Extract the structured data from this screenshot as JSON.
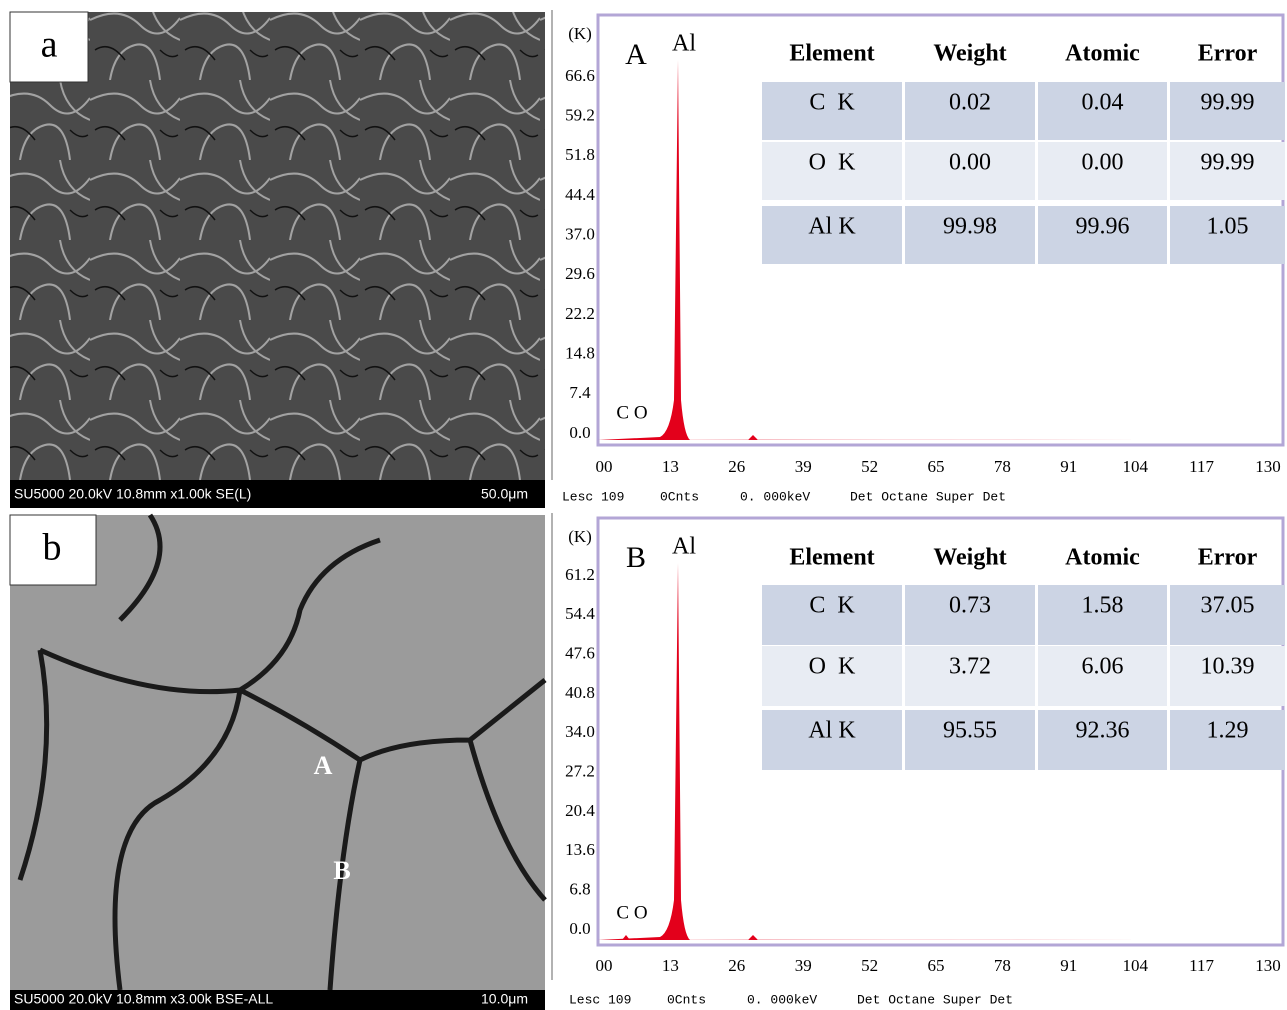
{
  "panels": [
    {
      "label": "a",
      "caption": "SU5000 20.0kV 10.8mm x1.00k SE(L)",
      "scale": "50.0μm"
    },
    {
      "label": "b",
      "caption": "SU5000 20.0kV 10.8mm x3.00k BSE-ALL",
      "scale": "10.0μm",
      "points": [
        "A",
        "B"
      ]
    }
  ],
  "spectra": [
    {
      "label": "A",
      "unit": "(K)",
      "peak_label": "Al",
      "minor_labels": "C O",
      "yticks": [
        "66.6",
        "59.2",
        "51.8",
        "44.4",
        "37.0",
        "29.6",
        "22.2",
        "14.8",
        "7.4",
        "0.0"
      ],
      "xticks": [
        "00",
        "13",
        "26",
        "39",
        "52",
        "65",
        "78",
        "91",
        "104",
        "117",
        "130"
      ],
      "footer": [
        "Lesc 109",
        "0Cnts",
        "0. 000keV",
        "Det Octane Super Det"
      ],
      "table": {
        "header": [
          "Element",
          "Weight",
          "Atomic",
          "Error"
        ],
        "rows": [
          [
            "C  K",
            "0.02",
            "0.04",
            "99.99"
          ],
          [
            "O  K",
            "0.00",
            "0.00",
            "99.99"
          ],
          [
            "Al K",
            "99.98",
            "99.96",
            "1.05"
          ]
        ]
      }
    },
    {
      "label": "B",
      "unit": "(K)",
      "peak_label": "Al",
      "minor_labels": "C O",
      "yticks": [
        "61.2",
        "54.4",
        "47.6",
        "40.8",
        "34.0",
        "27.2",
        "20.4",
        "13.6",
        "6.8",
        "0.0"
      ],
      "xticks": [
        "00",
        "13",
        "26",
        "39",
        "52",
        "65",
        "78",
        "91",
        "104",
        "117",
        "130"
      ],
      "footer": [
        "Lesc 109",
        "0Cnts",
        "0. 000keV",
        "Det Octane Super Det"
      ],
      "table": {
        "header": [
          "Element",
          "Weight",
          "Atomic",
          "Error"
        ],
        "rows": [
          [
            "C  K",
            "0.73",
            "1.58",
            "37.05"
          ],
          [
            "O  K",
            "3.72",
            "6.06",
            "10.39"
          ],
          [
            "Al K",
            "95.55",
            "92.36",
            "1.29"
          ]
        ]
      }
    }
  ]
}
